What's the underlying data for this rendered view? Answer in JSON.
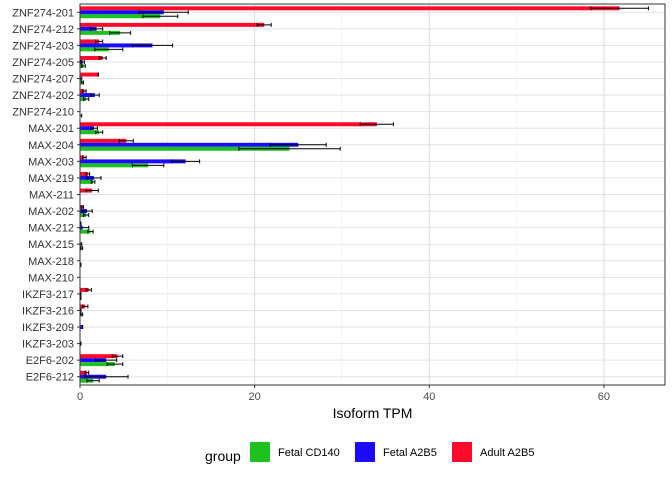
{
  "chart_data": {
    "type": "bar",
    "orientation": "horizontal",
    "xlabel": "Isoform TPM",
    "ylabel": "",
    "xlim": [
      0,
      67
    ],
    "xticks": [
      0,
      20,
      40,
      60
    ],
    "grid": true,
    "legend_position": "bottom",
    "legend_title": "group",
    "categories": [
      "ZNF274-201",
      "ZNF274-212",
      "ZNF274-203",
      "ZNF274-205",
      "ZNF274-207",
      "ZNF274-202",
      "ZNF274-210",
      "MAX-201",
      "MAX-204",
      "MAX-203",
      "MAX-219",
      "MAX-211",
      "MAX-202",
      "MAX-212",
      "MAX-215",
      "MAX-218",
      "MAX-210",
      "IKZF3-217",
      "IKZF3-216",
      "IKZF3-209",
      "IKZF3-203",
      "E2F6-202",
      "E2F6-212"
    ],
    "series": [
      {
        "name": "Fetal CD140",
        "color": "#1ec21e",
        "values": [
          9.2,
          4.6,
          3.3,
          0.4,
          0.3,
          0.7,
          0.0,
          2.2,
          24.0,
          7.8,
          1.5,
          0.0,
          0.7,
          1.2,
          0.2,
          0.1,
          0.0,
          0.1,
          0.2,
          0.0,
          0.0,
          4.0,
          1.5
        ],
        "errors": [
          2.0,
          1.2,
          1.6,
          0.2,
          0.1,
          0.3,
          0.2,
          0.4,
          5.8,
          1.8,
          0.2,
          0.0,
          0.3,
          0.3,
          0.1,
          0.0,
          0.0,
          0.0,
          0.1,
          0.0,
          0.0,
          0.9,
          0.7
        ]
      },
      {
        "name": "Fetal A2B5",
        "color": "#1a0bff",
        "values": [
          9.6,
          1.9,
          8.3,
          0.3,
          0.1,
          1.7,
          0.0,
          1.6,
          25.0,
          12.1,
          1.6,
          0.0,
          0.8,
          0.3,
          0.1,
          0.0,
          0.0,
          0.1,
          0.1,
          0.3,
          0.1,
          3.0,
          3.0
        ],
        "errors": [
          2.8,
          0.7,
          2.3,
          0.2,
          0.1,
          0.5,
          0.0,
          0.4,
          3.2,
          1.6,
          0.8,
          0.0,
          0.6,
          0.7,
          0.1,
          0.0,
          0.0,
          0.0,
          0.0,
          0.0,
          0.0,
          1.2,
          2.5
        ]
      },
      {
        "name": "Adult A2B5",
        "color": "#ff0a2a",
        "values": [
          61.8,
          21.1,
          2.2,
          2.6,
          2.1,
          0.5,
          0.0,
          34.0,
          5.3,
          0.5,
          0.9,
          1.4,
          0.3,
          0.1,
          0.0,
          0.0,
          0.0,
          1.0,
          0.6,
          0.0,
          0.0,
          4.3,
          0.8
        ],
        "errors": [
          3.3,
          0.8,
          0.4,
          0.4,
          0.0,
          0.2,
          0.0,
          1.9,
          0.8,
          0.2,
          0.2,
          0.7,
          0.1,
          0.0,
          0.0,
          0.0,
          0.0,
          0.3,
          0.3,
          0.0,
          0.0,
          0.6,
          0.2
        ]
      }
    ]
  }
}
